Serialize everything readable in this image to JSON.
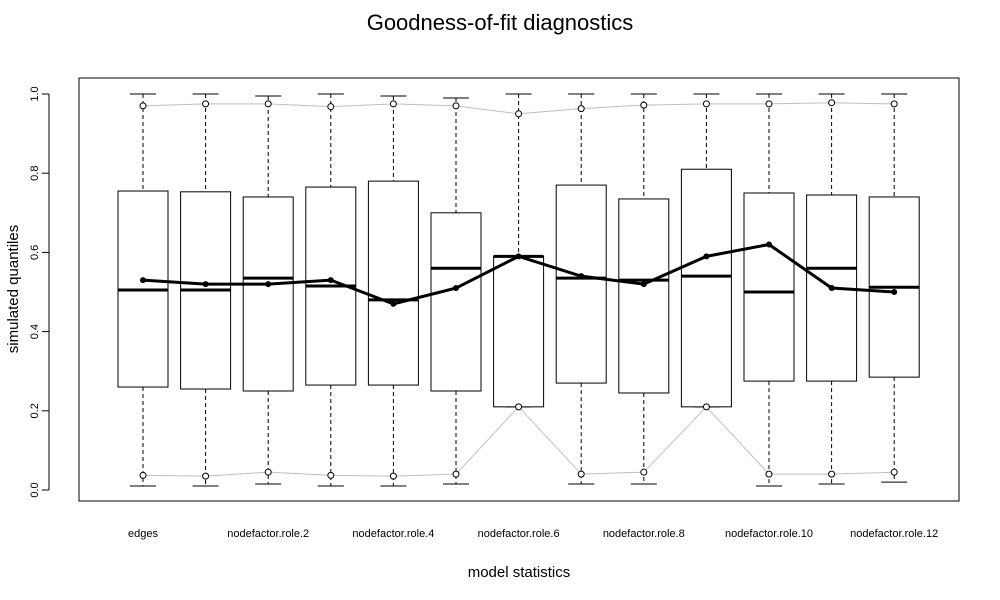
{
  "chart_data": {
    "type": "boxplot",
    "title": "Goodness-of-fit diagnostics",
    "xlabel": "model statistics",
    "ylabel": "simulated quantiles",
    "ylim": [
      0,
      1
    ],
    "yticks": [
      "0.0",
      "0.2",
      "0.4",
      "0.6",
      "0.8",
      "1.0"
    ],
    "categories": [
      "edges",
      "",
      "nodefactor.role.2",
      "",
      "nodefactor.role.4",
      "",
      "nodefactor.role.6",
      "",
      "nodefactor.role.8",
      "",
      "nodefactor.role.10",
      "",
      "nodefactor.role.12"
    ],
    "boxes": [
      {
        "min": 0.01,
        "q1": 0.26,
        "median": 0.505,
        "q3": 0.755,
        "max": 1.0
      },
      {
        "min": 0.01,
        "q1": 0.255,
        "median": 0.505,
        "q3": 0.753,
        "max": 1.0
      },
      {
        "min": 0.015,
        "q1": 0.25,
        "median": 0.535,
        "q3": 0.74,
        "max": 0.995
      },
      {
        "min": 0.01,
        "q1": 0.265,
        "median": 0.515,
        "q3": 0.765,
        "max": 1.0
      },
      {
        "min": 0.01,
        "q1": 0.265,
        "median": 0.48,
        "q3": 0.78,
        "max": 0.995
      },
      {
        "min": 0.015,
        "q1": 0.25,
        "median": 0.56,
        "q3": 0.7,
        "max": 0.99
      },
      {
        "min": 0.21,
        "q1": 0.21,
        "median": 0.59,
        "q3": 0.59,
        "max": 1.0
      },
      {
        "min": 0.015,
        "q1": 0.27,
        "median": 0.535,
        "q3": 0.77,
        "max": 1.0
      },
      {
        "min": 0.015,
        "q1": 0.245,
        "median": 0.53,
        "q3": 0.735,
        "max": 1.0
      },
      {
        "min": 0.21,
        "q1": 0.21,
        "median": 0.54,
        "q3": 0.81,
        "max": 1.0
      },
      {
        "min": 0.01,
        "q1": 0.275,
        "median": 0.5,
        "q3": 0.75,
        "max": 1.0
      },
      {
        "min": 0.015,
        "q1": 0.275,
        "median": 0.56,
        "q3": 0.745,
        "max": 1.0
      },
      {
        "min": 0.02,
        "q1": 0.285,
        "median": 0.512,
        "q3": 0.74,
        "max": 1.0
      }
    ],
    "series": [
      {
        "values": [
          0.53,
          0.52,
          0.52,
          0.53,
          0.47,
          0.51,
          0.59,
          0.54,
          0.52,
          0.59,
          0.62,
          0.51,
          0.5
        ],
        "color": "#000000"
      },
      {
        "values": [
          0.97,
          0.975,
          0.975,
          0.968,
          0.975,
          0.97,
          0.95,
          0.963,
          0.972,
          0.975,
          0.975,
          0.978,
          0.975
        ],
        "color": "#bfbfbf"
      },
      {
        "values": [
          0.037,
          0.035,
          0.045,
          0.037,
          0.035,
          0.04,
          0.21,
          0.04,
          0.045,
          0.21,
          0.04,
          0.04,
          0.045
        ],
        "color": "#bfbfbf"
      }
    ],
    "grid": false,
    "legend": "none"
  }
}
